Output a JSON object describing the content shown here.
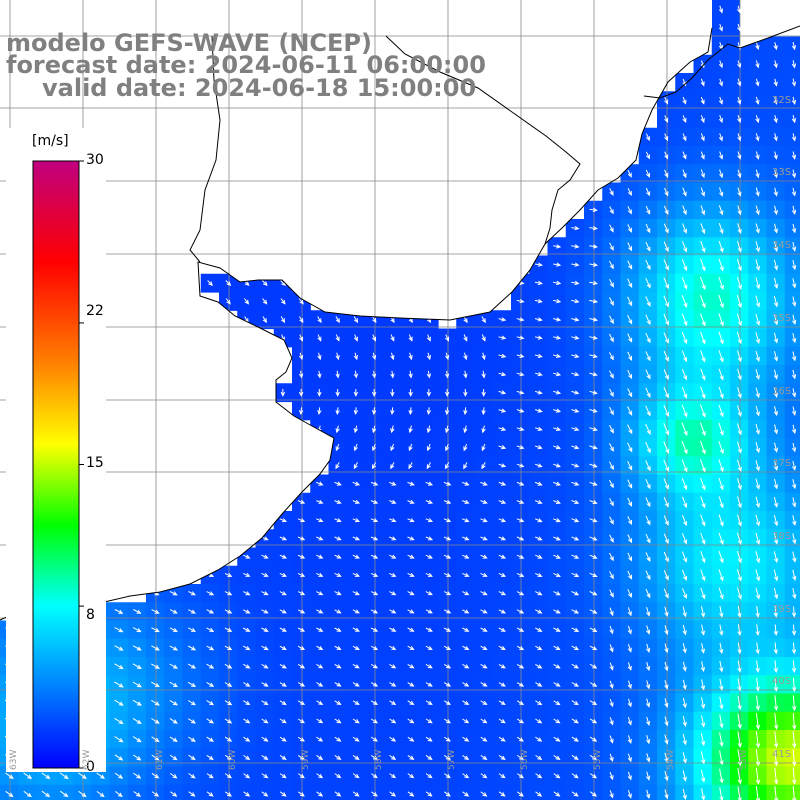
{
  "title": {
    "line1": "modelo GEFS-WAVE (NCEP)",
    "line2": "forecast date: 2024-06-11 06:00:00",
    "line3": "valid date: 2024-06-18 15:00:00"
  },
  "colorbar": {
    "unit": "[m/s]",
    "ticks": [
      "30",
      "22",
      "15",
      "8",
      "0"
    ],
    "tick_values": [
      30,
      22,
      15,
      8,
      0
    ],
    "range": [
      0,
      30
    ],
    "colors": [
      "#0000ff",
      "#0080ff",
      "#00ffff",
      "#00ff00",
      "#ffff00",
      "#ff8000",
      "#ff0000",
      "#c0007f"
    ]
  },
  "map": {
    "variable": "wind speed and direction at 10 m",
    "region": "Rio de la Plata / Uruguay / South Atlantic",
    "lat_labels": [
      "32S",
      "33S",
      "34S",
      "35S",
      "36S",
      "37S",
      "38S",
      "39S",
      "40S",
      "41S"
    ],
    "lon_labels": [
      "63W",
      "62W",
      "61W",
      "60W",
      "59W",
      "58W",
      "57W",
      "56W",
      "55W",
      "54W",
      "53W"
    ],
    "land_color": "#ffffff",
    "coast_color": "#000000",
    "grid_color": "#888888",
    "arrow_color": "#ffffff"
  }
}
